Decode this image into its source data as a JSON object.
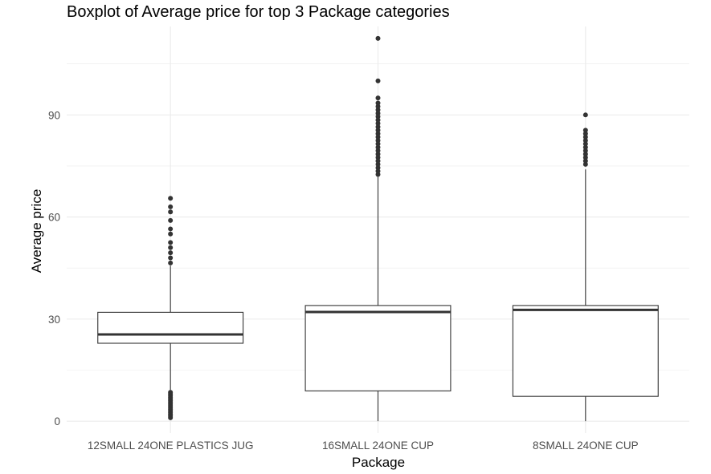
{
  "chart_data": {
    "type": "boxplot",
    "title": "Boxplot of Average price for top 3 Package categories",
    "xlabel": "Package",
    "ylabel": "Average price",
    "ylim": [
      -3.5,
      116
    ],
    "y_ticks": [
      0,
      30,
      60,
      90
    ],
    "y_minor_ticks": [
      15,
      45,
      75,
      105
    ],
    "grid": true,
    "legend": "none",
    "colors": {
      "box_fill": "#ffffff",
      "box_line": "#333333",
      "grid": "#ebebeb",
      "point": "#333333"
    },
    "categories": [
      "12SMALL 24ONE PLASTICS JUG",
      "16SMALL 24ONE CUP",
      "8SMALL 24ONE CUP"
    ],
    "boxes": [
      {
        "category": "12SMALL 24ONE PLASTICS JUG",
        "lower_whisker": 9.2,
        "q1": 22.9,
        "median": 25.5,
        "q3": 32.0,
        "upper_whisker": 45.7,
        "outliers": [
          1.0,
          1.5,
          2.0,
          2.5,
          3.0,
          3.5,
          4.0,
          4.5,
          5.0,
          5.5,
          6.0,
          6.5,
          7.0,
          7.5,
          8.0,
          8.5,
          46.5,
          48.0,
          49.5,
          51.0,
          52.5,
          55.0,
          56.5,
          59.0,
          61.5,
          63.0,
          65.5
        ]
      },
      {
        "category": "16SMALL 24ONE CUP",
        "lower_whisker": 0,
        "q1": 8.9,
        "median": 32.1,
        "q3": 34.0,
        "upper_whisker": 71.8,
        "outliers": [
          72.5,
          73.5,
          74.5,
          75.5,
          76.5,
          77.5,
          78.5,
          79.5,
          80.5,
          81.5,
          82.5,
          83.5,
          84.5,
          85.5,
          86.5,
          87.5,
          88.5,
          89.5,
          90.5,
          91.5,
          92.5,
          93.5,
          95.0,
          100.0,
          112.5
        ]
      },
      {
        "category": "8SMALL 24ONE CUP",
        "lower_whisker": 0,
        "q1": 7.3,
        "median": 32.7,
        "q3": 34.0,
        "upper_whisker": 74.0,
        "outliers": [
          75.5,
          76.5,
          77.5,
          78.5,
          79.5,
          80.5,
          81.5,
          82.5,
          83.5,
          84.5,
          85.5,
          90.0
        ]
      }
    ]
  }
}
